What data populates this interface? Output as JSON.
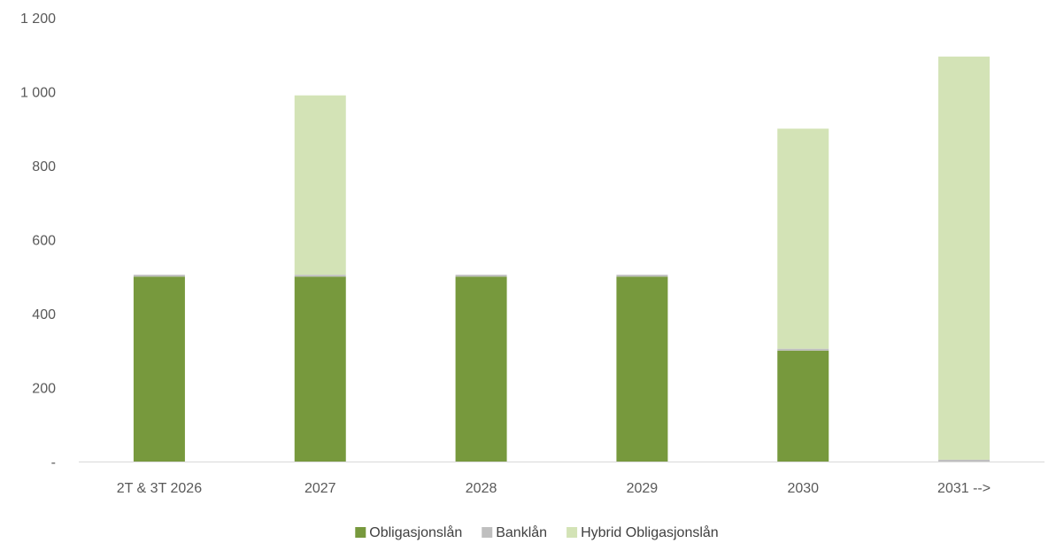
{
  "chart_data": {
    "type": "bar",
    "stacked": true,
    "categories": [
      "2T & 3T 2026",
      "2027",
      "2028",
      "2029",
      "2030",
      "2031 -->"
    ],
    "series": [
      {
        "name": "Obligasjonslån",
        "values": [
          500,
          500,
          500,
          500,
          300,
          0
        ],
        "color": "#77993d"
      },
      {
        "name": "Banklån",
        "values": [
          5,
          5,
          5,
          5,
          5,
          5
        ],
        "color": "#bfbfbf"
      },
      {
        "name": "Hybrid Obligasjonslån",
        "values": [
          0,
          485,
          0,
          0,
          595,
          1090
        ],
        "color": "#d3e3b6"
      }
    ],
    "y_ticks": [
      "-",
      "200",
      "400",
      "600",
      "800",
      "1 000",
      "1 200"
    ],
    "ylim": [
      0,
      1200
    ],
    "title": "",
    "xlabel": "",
    "ylabel": "",
    "grid": false,
    "legend_position": "bottom"
  }
}
